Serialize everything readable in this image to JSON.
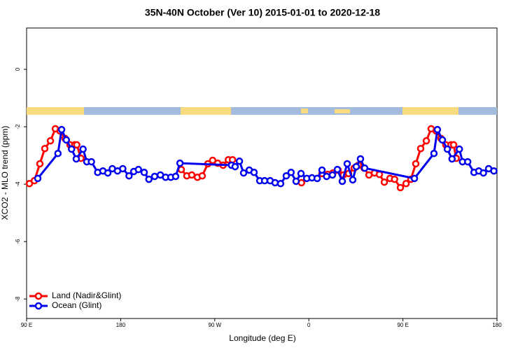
{
  "chart_data": {
    "type": "line",
    "title": "35N-40N October (Ver 10)   2015-01-01 to 2020-12-18",
    "x_label": "Longitude (deg E)",
    "y_label": "XCO2 - MLO trend (ppm)",
    "xlim": [
      90,
      540
    ],
    "ylim": [
      -8.68,
      1.44
    ],
    "xticks": [
      {
        "value": 90,
        "label": "90 E"
      },
      180,
      {
        "value": 270,
        "label": "90 W"
      },
      {
        "value": 360,
        "label": "0"
      },
      {
        "value": 450,
        "label": "90 E"
      },
      {
        "value": 540,
        "label": "180"
      }
    ],
    "yticks": [
      0,
      -2,
      -4,
      -6,
      -8
    ],
    "legend": "bottom-left",
    "series": [
      {
        "name": "Land (Nadir&Glint)",
        "color": "#ff0000",
        "x": [
          92.7,
          97.4,
          102.7,
          107.4,
          112.8,
          117.5,
          122,
          126.8,
          131.5,
          136,
          138,
          142,
          null,
          238,
          243.3,
          248,
          253.4,
          258,
          263.4,
          268,
          272.8,
          278,
          283,
          287,
          null,
          353,
          null,
          372.6,
          378,
          383,
          388,
          393,
          398,
          403.4,
          407.4,
          412.8,
          417.5,
          422.8,
          427.5,
          432.2,
          437.6,
          442,
          447.6,
          453,
          457.6,
          462.3,
          467,
          472.4,
          477,
          481.8,
          486.4,
          491,
          496,
          498.5,
          501
        ],
        "values": [
          -3.98,
          -3.88,
          -3.29,
          -2.76,
          -2.49,
          -2.07,
          -2.15,
          -2.41,
          -2.63,
          -2.63,
          -2.63,
          -3.1,
          null,
          -3.49,
          -3.71,
          -3.68,
          -3.76,
          -3.71,
          -3.29,
          -3.17,
          -3.27,
          -3.34,
          -3.15,
          -3.15,
          null,
          -3.95,
          null,
          -3.63,
          -3.66,
          -3.61,
          -3.51,
          -3.68,
          -3.63,
          -3.44,
          -3.34,
          -3.44,
          -3.68,
          -3.61,
          -3.66,
          -3.93,
          -3.8,
          -3.83,
          -4.12,
          -3.98,
          -3.83,
          -3.29,
          -2.76,
          -2.49,
          -2.07,
          -2.15,
          -2.41,
          -2.63,
          -2.63,
          -2.63,
          -3.1
        ]
      },
      {
        "name": "Ocean (Glint)",
        "color": "#0000ee",
        "x": [
          100.7,
          120,
          123.5,
          128,
          133,
          137.5,
          144,
          147.6,
          152,
          158,
          163,
          167.7,
          172,
          177,
          182,
          188,
          192.5,
          197,
          202.5,
          207,
          212.5,
          218,
          223,
          228,
          232.6,
          236.7,
          286,
          289.5,
          293.6,
          297.6,
          303,
          307.6,
          313,
          317.7,
          323,
          327.7,
          333,
          338.4,
          343,
          347.8,
          352.5,
          358,
          363,
          368,
          372.6,
          377,
          382.6,
          387.3,
          392,
          396.7,
          402,
          405.4,
          409.4,
          413.4,
          461,
          479.7,
          483,
          487.8,
          492.5,
          497,
          504,
          507,
          512,
          518,
          522.6,
          527,
          532,
          537
        ],
        "values": [
          -3.8,
          -2.93,
          -2.1,
          -2.46,
          -2.78,
          -3.12,
          -2.78,
          -3.22,
          -3.22,
          -3.59,
          -3.54,
          -3.61,
          -3.46,
          -3.54,
          -3.46,
          -3.71,
          -3.56,
          -3.49,
          -3.59,
          -3.83,
          -3.73,
          -3.68,
          -3.76,
          -3.76,
          -3.73,
          -3.27,
          -3.34,
          -3.39,
          -3.2,
          -3.61,
          -3.51,
          -3.59,
          -3.88,
          -3.88,
          -3.88,
          -3.95,
          -3.98,
          -3.71,
          -3.59,
          -3.9,
          -3.63,
          -3.8,
          -3.78,
          -3.8,
          -3.51,
          -3.73,
          -3.68,
          -3.49,
          -3.9,
          -3.29,
          -3.85,
          -3.39,
          -3.12,
          -3.44,
          -3.8,
          -2.93,
          -2.1,
          -2.46,
          -2.78,
          -3.12,
          -2.78,
          -3.22,
          -3.22,
          -3.59,
          -3.54,
          -3.61,
          -3.46,
          -3.54
        ]
      }
    ]
  }
}
